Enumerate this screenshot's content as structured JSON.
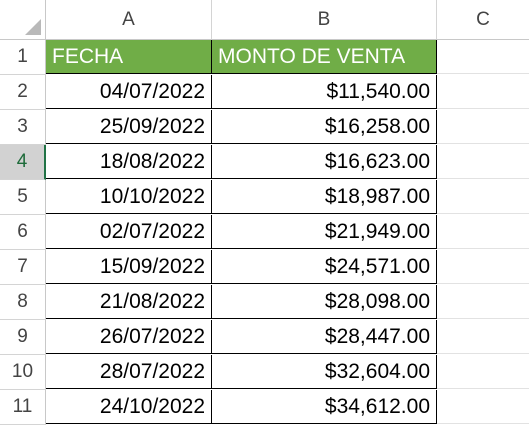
{
  "columns": [
    "A",
    "B",
    "C"
  ],
  "header": {
    "fecha": "FECHA",
    "monto": "MONTO DE VENTA",
    "fill_color": "#70ad47"
  },
  "rows": [
    {
      "num": "1"
    },
    {
      "num": "2",
      "fecha": "04/07/2022",
      "monto": "$11,540.00"
    },
    {
      "num": "3",
      "fecha": "25/09/2022",
      "monto": "$16,258.00"
    },
    {
      "num": "4",
      "fecha": "18/08/2022",
      "monto": "$16,623.00"
    },
    {
      "num": "5",
      "fecha": "10/10/2022",
      "monto": "$18,987.00"
    },
    {
      "num": "6",
      "fecha": "02/07/2022",
      "monto": "$21,949.00"
    },
    {
      "num": "7",
      "fecha": "15/09/2022",
      "monto": "$24,571.00"
    },
    {
      "num": "8",
      "fecha": "21/08/2022",
      "monto": "$28,098.00"
    },
    {
      "num": "9",
      "fecha": "26/07/2022",
      "monto": "$28,447.00"
    },
    {
      "num": "10",
      "fecha": "28/07/2022",
      "monto": "$32,604.00"
    },
    {
      "num": "11",
      "fecha": "24/10/2022",
      "monto": "$34,612.00"
    }
  ],
  "active_row": "4",
  "accent_color": "#217346"
}
